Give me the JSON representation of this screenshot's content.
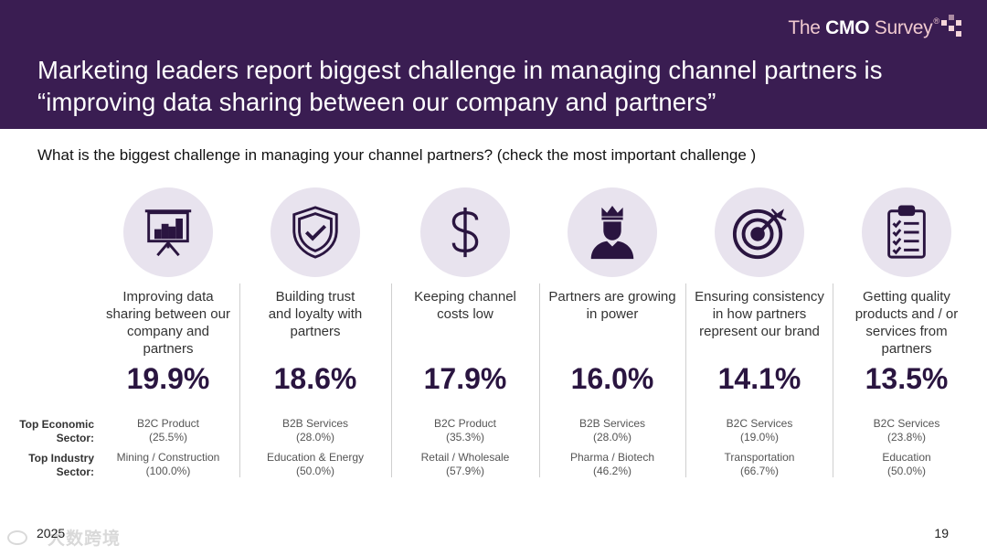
{
  "brand": {
    "prefix": "The ",
    "bold": "CMO",
    "suffix": " Survey",
    "mark": "®"
  },
  "title": "Marketing leaders report biggest challenge in managing channel partners is “improving data sharing between our company and partners”",
  "question": "What is the biggest challenge in managing your channel partners? (check the most important challenge )",
  "row_labels": {
    "economic": [
      "Top Economic",
      "Sector:"
    ],
    "industry": [
      "Top Industry",
      "Sector:"
    ]
  },
  "colors": {
    "header": "#3a1d52",
    "circle": "#e8e3ee",
    "icon": "#2a1540",
    "accent": "#f0c9cf"
  },
  "challenges": [
    {
      "icon": "presentation-chart-icon",
      "label": [
        "Improving data",
        "sharing between our",
        "company and",
        "partners"
      ],
      "percent": "19.9%",
      "econ_sector": "B2C Product",
      "econ_pct": "(25.5%)",
      "ind_sector": "Mining / Construction",
      "ind_pct": "(100.0%)"
    },
    {
      "icon": "shield-check-icon",
      "label": [
        "Building trust",
        "and loyalty with",
        "partners"
      ],
      "percent": "18.6%",
      "econ_sector": "B2B Services",
      "econ_pct": "(28.0%)",
      "ind_sector": "Education & Energy",
      "ind_pct": "(50.0%)"
    },
    {
      "icon": "dollar-icon",
      "label": [
        "Keeping channel",
        "costs low"
      ],
      "percent": "17.9%",
      "econ_sector": "B2C Product",
      "econ_pct": "(35.3%)",
      "ind_sector": "Retail / Wholesale",
      "ind_pct": "(57.9%)"
    },
    {
      "icon": "crowned-person-icon",
      "label": [
        "Partners are growing",
        "in power"
      ],
      "percent": "16.0%",
      "econ_sector": "B2B Services",
      "econ_pct": "(28.0%)",
      "ind_sector": "Pharma / Biotech",
      "ind_pct": "(46.2%)"
    },
    {
      "icon": "target-icon",
      "label": [
        "Ensuring consistency",
        "in how partners",
        "represent our brand"
      ],
      "percent": "14.1%",
      "econ_sector": "B2C Services",
      "econ_pct": "(19.0%)",
      "ind_sector": "Transportation",
      "ind_pct": "(66.7%)"
    },
    {
      "icon": "checklist-icon",
      "label": [
        "Getting quality",
        "products and / or",
        "services from",
        "partners"
      ],
      "percent": "13.5%",
      "econ_sector": "B2C Services",
      "econ_pct": "(23.8%)",
      "ind_sector": "Education",
      "ind_pct": "(50.0%)"
    }
  ],
  "footer": {
    "year": "2025",
    "page": "19",
    "watermark": "大数跨境"
  }
}
